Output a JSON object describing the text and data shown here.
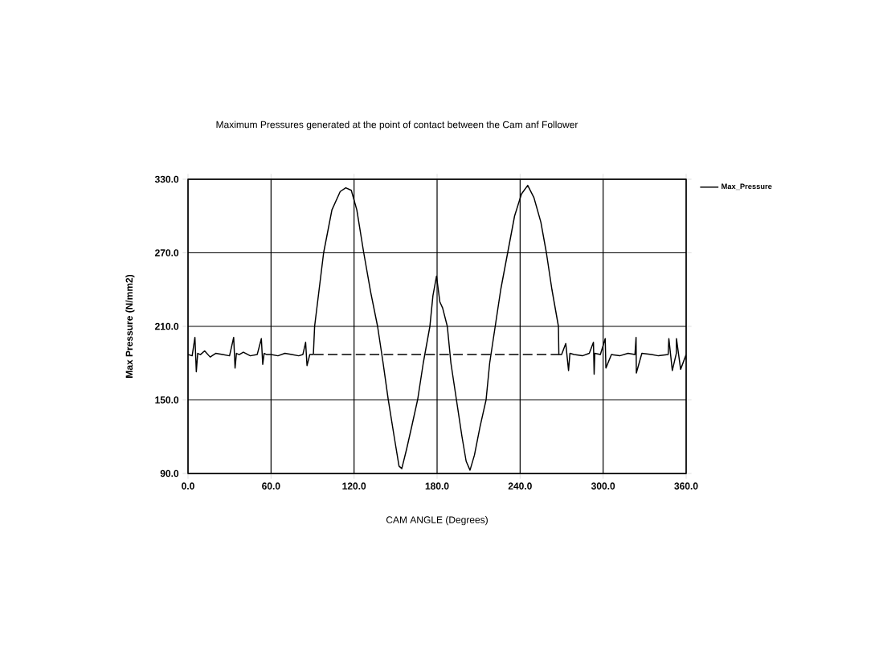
{
  "chart_data": {
    "type": "line",
    "title": "Maximum Pressures generated at the point of contact between the Cam anf Follower",
    "xlabel": "CAM ANGLE (Degrees)",
    "ylabel": "Max Pressure (N/mm2)",
    "xlim": [
      0,
      360
    ],
    "ylim": [
      90,
      330
    ],
    "xticks": [
      {
        "value": 0,
        "label": "0.0"
      },
      {
        "value": 60,
        "label": "60.0"
      },
      {
        "value": 120,
        "label": "120.0"
      },
      {
        "value": 180,
        "label": "180.0"
      },
      {
        "value": 240,
        "label": "240.0"
      },
      {
        "value": 300,
        "label": "300.0"
      },
      {
        "value": 360,
        "label": "360.0"
      }
    ],
    "yticks": [
      {
        "value": 90,
        "label": "90.0"
      },
      {
        "value": 150,
        "label": "150.0"
      },
      {
        "value": 210,
        "label": "210.0"
      },
      {
        "value": 270,
        "label": "270.0"
      },
      {
        "value": 330,
        "label": "330.0"
      }
    ],
    "grid": true,
    "legend": "top right",
    "series": [
      {
        "name": "Max_Pressure",
        "color": "#000000",
        "x": [
          0,
          3,
          5,
          6,
          7,
          9,
          12,
          16,
          20,
          25,
          30,
          33,
          34,
          35,
          37,
          40,
          45,
          50,
          53,
          54,
          55,
          57,
          60,
          65,
          70,
          75,
          80,
          83,
          85,
          86,
          88,
          90.6,
          91.5,
          98,
          104,
          110,
          114,
          118,
          122,
          127,
          132,
          137,
          141,
          144.6,
          149,
          152.5,
          154.5,
          158,
          162,
          166,
          170,
          174.8,
          177,
          179.6,
          182,
          184,
          187.4,
          190,
          194,
          198,
          201,
          203.8,
          207,
          211,
          215.4,
          218,
          222,
          226,
          231,
          236,
          241,
          245.5,
          250,
          255,
          259,
          263,
          267.7,
          268,
          270,
          273,
          275,
          276,
          279,
          285,
          290,
          293,
          293.5,
          294,
          298,
          301.5,
          302,
          306,
          312,
          318,
          323,
          323.8,
          324,
          328,
          335,
          340,
          347,
          347.5,
          350,
          352.9,
          353,
          356,
          360
        ],
        "values": [
          187,
          186,
          201,
          173,
          188,
          187,
          190,
          185,
          188,
          187,
          186,
          201,
          176,
          188,
          187,
          189,
          186,
          187,
          200,
          179,
          188,
          187,
          187,
          186,
          188,
          187,
          186,
          187,
          197,
          178,
          187,
          187,
          210,
          270,
          305,
          320,
          323,
          321,
          305,
          270,
          238,
          210,
          180,
          151,
          120,
          96,
          94,
          110,
          130,
          150.5,
          180,
          210,
          235,
          251,
          230,
          225,
          210,
          180,
          150,
          120,
          100,
          92.7,
          105,
          128,
          150,
          180,
          210,
          240,
          270,
          300,
          318,
          325,
          315,
          295,
          270,
          240,
          210,
          187,
          187,
          196,
          174,
          188,
          187,
          186,
          188,
          197,
          171,
          188,
          187,
          200,
          176,
          187,
          186,
          188,
          187,
          201,
          172,
          188,
          187,
          186,
          187,
          200,
          174,
          188,
          200,
          175,
          187
        ]
      },
      {
        "color": "#000000",
        "line_style": "dashed",
        "x": [
          91,
          268
        ],
        "values": [
          187,
          187
        ]
      }
    ]
  }
}
